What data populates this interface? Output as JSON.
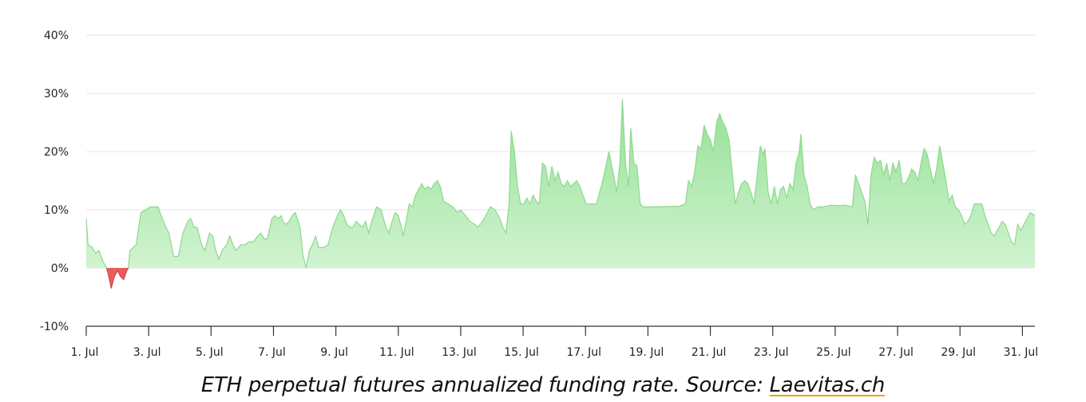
{
  "chart_data": {
    "type": "area",
    "title": "",
    "xlabel": "",
    "ylabel": "",
    "ylim": [
      -10,
      40
    ],
    "y_ticks": [
      "-10%",
      "0%",
      "10%",
      "20%",
      "30%",
      "40%"
    ],
    "x_ticks": [
      "1. Jul",
      "3. Jul",
      "5. Jul",
      "7. Jul",
      "9. Jul",
      "11. Jul",
      "13. Jul",
      "15. Jul",
      "17. Jul",
      "19. Jul",
      "21. Jul",
      "23. Jul",
      "25. Jul",
      "27. Jul",
      "29. Jul",
      "31. Jul"
    ],
    "x_range_days": [
      1,
      31.4
    ],
    "grid": "horizontal",
    "legend": "none",
    "colors": {
      "positive_fill": "#a6e8a6",
      "positive_line": "#8ed88e",
      "negative_fill": "#e85c5c",
      "grid": "#e6e6e6",
      "axis": "#333333"
    },
    "series": [
      {
        "points": [
          [
            1.0,
            8.5
          ],
          [
            1.06,
            4
          ],
          [
            1.2,
            3.5
          ],
          [
            1.3,
            2.5
          ],
          [
            1.4,
            3
          ],
          [
            1.55,
            1
          ],
          [
            1.65,
            0
          ],
          [
            1.7,
            -1
          ],
          [
            1.8,
            -3.5
          ],
          [
            1.9,
            -1.5
          ],
          [
            2.0,
            -0.5
          ],
          [
            2.1,
            -1.5
          ],
          [
            2.2,
            -2
          ],
          [
            2.3,
            -0.5
          ],
          [
            2.35,
            0
          ],
          [
            2.4,
            3
          ],
          [
            2.6,
            4
          ],
          [
            2.75,
            9.5
          ],
          [
            2.9,
            10
          ],
          [
            3.05,
            10.5
          ],
          [
            3.3,
            10.5
          ],
          [
            3.4,
            9
          ],
          [
            3.55,
            7
          ],
          [
            3.65,
            6
          ],
          [
            3.8,
            2
          ],
          [
            3.95,
            2
          ],
          [
            4.1,
            6
          ],
          [
            4.25,
            8
          ],
          [
            4.35,
            8.5
          ],
          [
            4.45,
            7
          ],
          [
            4.55,
            7
          ],
          [
            4.7,
            4
          ],
          [
            4.8,
            3
          ],
          [
            4.95,
            6
          ],
          [
            5.05,
            5.5
          ],
          [
            5.15,
            3
          ],
          [
            5.25,
            1.5
          ],
          [
            5.35,
            3
          ],
          [
            5.5,
            4
          ],
          [
            5.6,
            5.5
          ],
          [
            5.7,
            4
          ],
          [
            5.8,
            3
          ],
          [
            5.95,
            4
          ],
          [
            6.1,
            4
          ],
          [
            6.2,
            4.5
          ],
          [
            6.35,
            4.5
          ],
          [
            6.5,
            5.5
          ],
          [
            6.6,
            6
          ],
          [
            6.7,
            5
          ],
          [
            6.8,
            5
          ],
          [
            6.95,
            8.5
          ],
          [
            7.05,
            9
          ],
          [
            7.15,
            8.5
          ],
          [
            7.25,
            9
          ],
          [
            7.3,
            8
          ],
          [
            7.4,
            7.5
          ],
          [
            7.5,
            8
          ],
          [
            7.6,
            9
          ],
          [
            7.7,
            9.5
          ],
          [
            7.85,
            7
          ],
          [
            7.95,
            2
          ],
          [
            8.05,
            0
          ],
          [
            8.15,
            3
          ],
          [
            8.25,
            4
          ],
          [
            8.35,
            5.5
          ],
          [
            8.45,
            3.5
          ],
          [
            8.6,
            3.5
          ],
          [
            8.75,
            4
          ],
          [
            8.9,
            7
          ],
          [
            9.05,
            9
          ],
          [
            9.15,
            10
          ],
          [
            9.25,
            9
          ],
          [
            9.35,
            7.5
          ],
          [
            9.45,
            7
          ],
          [
            9.55,
            7
          ],
          [
            9.65,
            8
          ],
          [
            9.75,
            7.5
          ],
          [
            9.85,
            7
          ],
          [
            9.95,
            8
          ],
          [
            10.05,
            6
          ],
          [
            10.15,
            8
          ],
          [
            10.3,
            10.5
          ],
          [
            10.45,
            10
          ],
          [
            10.6,
            7
          ],
          [
            10.7,
            6
          ],
          [
            10.8,
            8
          ],
          [
            10.9,
            9.5
          ],
          [
            11.0,
            9
          ],
          [
            11.1,
            7
          ],
          [
            11.15,
            5.5
          ],
          [
            11.25,
            8
          ],
          [
            11.35,
            11
          ],
          [
            11.45,
            10.5
          ],
          [
            11.55,
            12.5
          ],
          [
            11.65,
            13.5
          ],
          [
            11.75,
            14.5
          ],
          [
            11.85,
            13.5
          ],
          [
            11.95,
            14
          ],
          [
            12.05,
            13.5
          ],
          [
            12.15,
            14.5
          ],
          [
            12.25,
            15
          ],
          [
            12.35,
            14
          ],
          [
            12.45,
            11.5
          ],
          [
            12.6,
            11
          ],
          [
            12.75,
            10.5
          ],
          [
            12.9,
            9.5
          ],
          [
            13.0,
            10
          ],
          [
            13.15,
            9
          ],
          [
            13.3,
            8
          ],
          [
            13.45,
            7.5
          ],
          [
            13.55,
            7
          ],
          [
            13.7,
            8
          ],
          [
            13.85,
            9.5
          ],
          [
            13.95,
            10.5
          ],
          [
            14.1,
            10
          ],
          [
            14.25,
            8.5
          ],
          [
            14.35,
            7
          ],
          [
            14.45,
            6
          ],
          [
            14.55,
            11
          ],
          [
            14.62,
            23.5
          ],
          [
            14.72,
            20
          ],
          [
            14.82,
            14
          ],
          [
            14.92,
            11
          ],
          [
            15.02,
            11
          ],
          [
            15.12,
            12
          ],
          [
            15.22,
            11
          ],
          [
            15.32,
            12.5
          ],
          [
            15.42,
            11.5
          ],
          [
            15.52,
            11
          ],
          [
            15.62,
            18
          ],
          [
            15.72,
            17.5
          ],
          [
            15.82,
            14
          ],
          [
            15.92,
            17.5
          ],
          [
            16.02,
            15
          ],
          [
            16.12,
            16.5
          ],
          [
            16.22,
            14.5
          ],
          [
            16.32,
            14
          ],
          [
            16.42,
            15
          ],
          [
            16.52,
            14
          ],
          [
            16.62,
            14.5
          ],
          [
            16.72,
            15
          ],
          [
            16.82,
            14
          ],
          [
            16.92,
            12.5
          ],
          [
            17.02,
            11
          ],
          [
            17.35,
            11
          ],
          [
            17.55,
            15
          ],
          [
            17.75,
            20
          ],
          [
            17.9,
            16
          ],
          [
            18.0,
            13
          ],
          [
            18.1,
            18
          ],
          [
            18.18,
            29
          ],
          [
            18.28,
            18
          ],
          [
            18.38,
            14
          ],
          [
            18.45,
            24
          ],
          [
            18.55,
            18
          ],
          [
            18.65,
            17.5
          ],
          [
            18.75,
            11
          ],
          [
            18.85,
            10.5
          ],
          [
            19.1,
            10.5
          ],
          [
            20.0,
            10.6
          ],
          [
            20.2,
            11
          ],
          [
            20.3,
            15
          ],
          [
            20.4,
            14
          ],
          [
            20.5,
            16.5
          ],
          [
            20.6,
            21
          ],
          [
            20.7,
            20.5
          ],
          [
            20.8,
            24.5
          ],
          [
            20.9,
            23
          ],
          [
            21.0,
            22
          ],
          [
            21.1,
            20
          ],
          [
            21.2,
            25
          ],
          [
            21.3,
            26.5
          ],
          [
            21.4,
            25
          ],
          [
            21.5,
            24
          ],
          [
            21.6,
            22
          ],
          [
            21.7,
            16.5
          ],
          [
            21.8,
            11
          ],
          [
            21.9,
            13
          ],
          [
            22.0,
            14.5
          ],
          [
            22.1,
            15
          ],
          [
            22.2,
            14.5
          ],
          [
            22.3,
            13
          ],
          [
            22.4,
            11
          ],
          [
            22.5,
            16
          ],
          [
            22.6,
            21
          ],
          [
            22.7,
            19.5
          ],
          [
            22.75,
            20.5
          ],
          [
            22.85,
            13
          ],
          [
            22.95,
            11
          ],
          [
            23.05,
            14
          ],
          [
            23.15,
            11
          ],
          [
            23.25,
            13.5
          ],
          [
            23.35,
            14
          ],
          [
            23.45,
            12
          ],
          [
            23.55,
            14.5
          ],
          [
            23.65,
            13.5
          ],
          [
            23.75,
            18
          ],
          [
            23.85,
            20
          ],
          [
            23.9,
            23
          ],
          [
            24.0,
            16
          ],
          [
            24.1,
            14
          ],
          [
            24.2,
            11
          ],
          [
            24.3,
            10
          ],
          [
            24.45,
            10.5
          ],
          [
            24.6,
            10.5
          ],
          [
            24.85,
            10.8
          ],
          [
            25.1,
            10.7
          ],
          [
            25.3,
            10.8
          ],
          [
            25.55,
            10.5
          ],
          [
            25.65,
            16
          ],
          [
            25.75,
            14.5
          ],
          [
            25.85,
            13
          ],
          [
            25.95,
            11.5
          ],
          [
            26.05,
            7.5
          ],
          [
            26.15,
            16
          ],
          [
            26.25,
            19
          ],
          [
            26.35,
            18
          ],
          [
            26.45,
            18.5
          ],
          [
            26.55,
            16
          ],
          [
            26.65,
            18
          ],
          [
            26.75,
            15
          ],
          [
            26.85,
            18
          ],
          [
            26.95,
            16.5
          ],
          [
            27.05,
            18.5
          ],
          [
            27.15,
            14.5
          ],
          [
            27.25,
            14.5
          ],
          [
            27.35,
            15.5
          ],
          [
            27.45,
            17
          ],
          [
            27.55,
            16.5
          ],
          [
            27.65,
            15
          ],
          [
            27.75,
            18
          ],
          [
            27.85,
            20.5
          ],
          [
            27.95,
            19.5
          ],
          [
            28.05,
            17
          ],
          [
            28.15,
            14.5
          ],
          [
            28.25,
            17
          ],
          [
            28.35,
            21
          ],
          [
            28.45,
            18
          ],
          [
            28.55,
            15
          ],
          [
            28.65,
            11.5
          ],
          [
            28.75,
            12.5
          ],
          [
            28.85,
            10.5
          ],
          [
            28.95,
            10
          ],
          [
            29.05,
            9
          ],
          [
            29.15,
            7.5
          ],
          [
            29.25,
            8
          ],
          [
            29.35,
            9
          ],
          [
            29.45,
            11
          ],
          [
            29.7,
            11
          ],
          [
            29.8,
            9
          ],
          [
            29.9,
            7.5
          ],
          [
            30.0,
            6
          ],
          [
            30.1,
            5.5
          ],
          [
            30.25,
            7
          ],
          [
            30.35,
            8
          ],
          [
            30.45,
            7.5
          ],
          [
            30.55,
            6
          ],
          [
            30.65,
            4.5
          ],
          [
            30.75,
            4
          ],
          [
            30.85,
            7.5
          ],
          [
            30.95,
            6.5
          ],
          [
            31.05,
            7.5
          ],
          [
            31.15,
            8.5
          ],
          [
            31.25,
            9.5
          ],
          [
            31.35,
            9.2
          ],
          [
            31.4,
            9
          ]
        ]
      }
    ]
  },
  "caption": {
    "text": "ETH perpetual futures annualized funding rate. Source: ",
    "link": "Laevitas.ch"
  }
}
